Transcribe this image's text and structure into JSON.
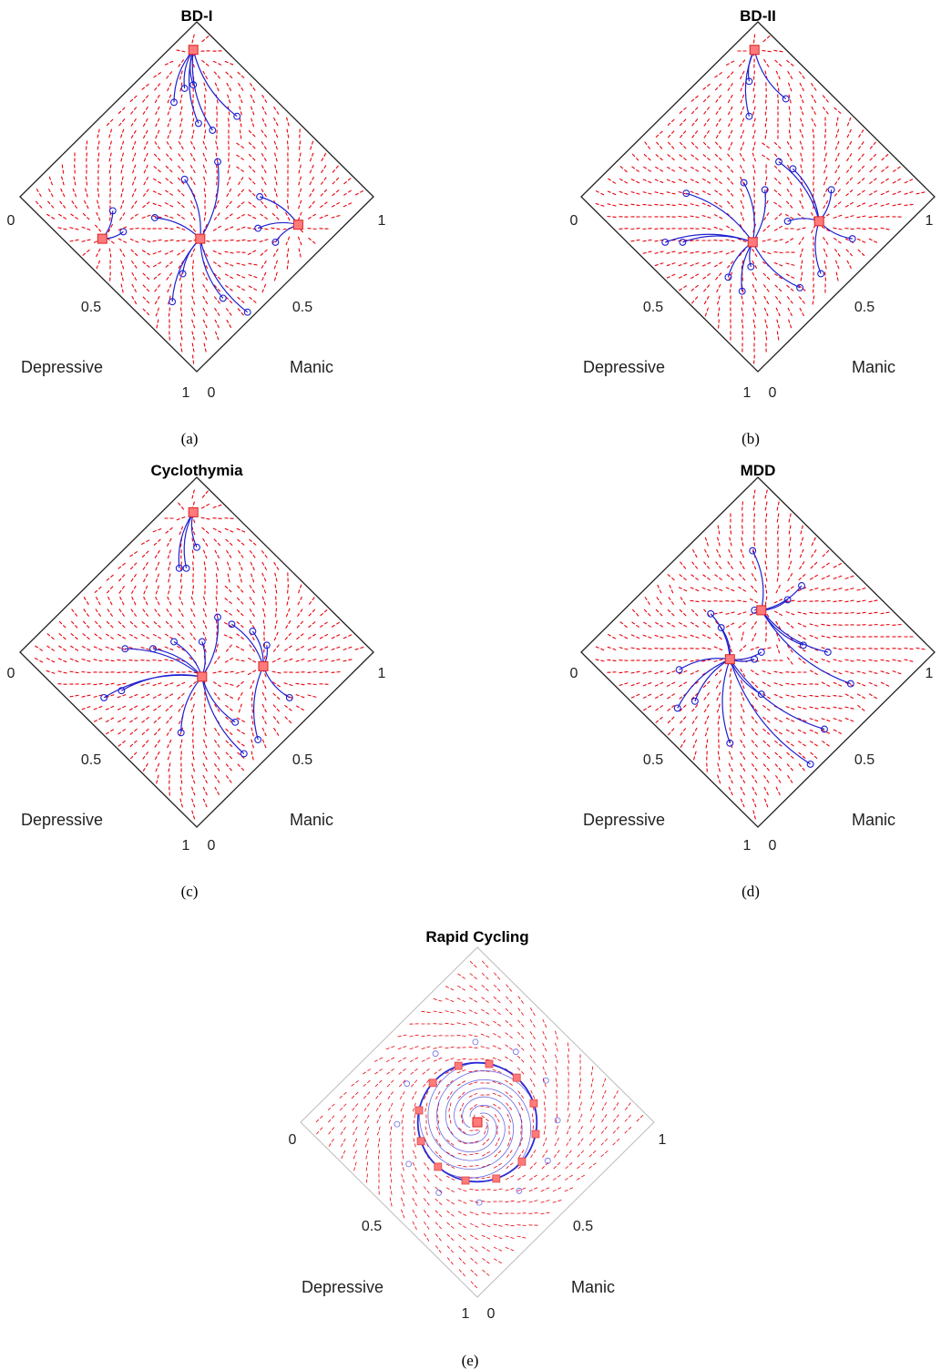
{
  "chart_data": [
    {
      "type": "phase-portrait",
      "title": "BD-I",
      "caption": "(a)",
      "xlabel": "Depressive",
      "ylabel": "Manic",
      "ticks": {
        "left": "0",
        "right": "1",
        "depressive_mid": "0.5",
        "manic_mid": "0.5",
        "bottom_depressive": "1",
        "bottom_manic": "0"
      },
      "attractors": [
        [
          0.0,
          0.58
        ],
        [
          0.05,
          0.03
        ],
        [
          0.3,
          0.32
        ],
        [
          0.58,
          0.04
        ]
      ],
      "initial_points": [
        [
          0.09,
          0.54
        ],
        [
          0.27,
          0.56
        ],
        [
          0.12,
          0.47
        ],
        [
          0.07,
          0.43
        ],
        [
          0.32,
          0.47
        ],
        [
          0.14,
          0.26
        ],
        [
          0.02,
          0.25
        ],
        [
          0.1,
          0.08
        ],
        [
          0.14,
          0.15
        ],
        [
          0.18,
          0.05
        ],
        [
          0.47,
          0.33
        ],
        [
          0.51,
          0.09
        ],
        [
          0.51,
          0.03
        ],
        [
          0.11,
          0.2
        ],
        [
          0.26,
          0.19
        ],
        [
          0.4,
          0.32
        ],
        [
          0.4,
          0.16
        ],
        [
          0.13,
          0.06
        ]
      ],
      "colors": {
        "field": "#e8000b",
        "trajectory": "#1f1fd0",
        "fixed_point": "#ff7a7a"
      }
    },
    {
      "type": "phase-portrait",
      "title": "BD-II",
      "caption": "(b)",
      "xlabel": "Depressive",
      "ylabel": "Manic",
      "ticks": {
        "left": "0",
        "right": "1",
        "depressive_mid": "0.5",
        "manic_mid": "0.5",
        "bottom_depressive": "1",
        "bottom_manic": "0"
      },
      "attractors": [
        [
          0.11,
          0.46
        ],
        [
          0.05,
          0.03
        ],
        [
          0.33,
          0.3
        ]
      ],
      "initial_points": [
        [
          0.04,
          0.58
        ],
        [
          0.18,
          0.54
        ],
        [
          0.26,
          0.5
        ],
        [
          0.2,
          0.37
        ],
        [
          0.03,
          0.45
        ],
        [
          0.11,
          0.31
        ],
        [
          0.45,
          0.28
        ],
        [
          0.14,
          0.26
        ],
        [
          0.11,
          0.06
        ],
        [
          0.16,
          0.11
        ],
        [
          0.27,
          0.19
        ],
        [
          0.22,
          0.26
        ],
        [
          0.03,
          0.19
        ],
        [
          0.45,
          0.04
        ],
        [
          0.53,
          0.1
        ],
        [
          0.58,
          0.05
        ],
        [
          0.43,
          0.34
        ],
        [
          0.37,
          0.33
        ]
      ],
      "colors": {
        "field": "#e8000b",
        "trajectory": "#1f1fd0",
        "fixed_point": "#ff7a7a"
      }
    },
    {
      "type": "phase-portrait",
      "title": "Cyclothymia",
      "caption": "(c)",
      "xlabel": "Depressive",
      "ylabel": "Manic",
      "ticks": {
        "left": "0",
        "right": "1",
        "depressive_mid": "0.5",
        "manic_mid": "0.5",
        "bottom_depressive": "1",
        "bottom_manic": "0"
      },
      "attractors": [
        [
          0.08,
          0.46
        ],
        [
          0.06,
          0.04
        ],
        [
          0.27,
          0.3
        ]
      ],
      "initial_points": [
        [
          0.05,
          0.58
        ],
        [
          0.2,
          0.55
        ],
        [
          0.26,
          0.53
        ],
        [
          0.24,
          0.46
        ],
        [
          0.11,
          0.31
        ],
        [
          0.04,
          0.44
        ],
        [
          0.06,
          0.38
        ],
        [
          0.14,
          0.26
        ],
        [
          0.1,
          0.1
        ],
        [
          0.16,
          0.1
        ],
        [
          0.45,
          0.04
        ],
        [
          0.52,
          0.09
        ],
        [
          0.58,
          0.05
        ],
        [
          0.41,
          0.32
        ],
        [
          0.3,
          0.17
        ],
        [
          0.22,
          0.25
        ],
        [
          0.18,
          0.08
        ],
        [
          0.37,
          0.12
        ]
      ],
      "colors": {
        "field": "#e8000b",
        "trajectory": "#1f1fd0",
        "fixed_point": "#ff7a7a"
      }
    },
    {
      "type": "phase-portrait",
      "title": "MDD",
      "caption": "(d)",
      "xlabel": "Depressive",
      "ylabel": "Manic",
      "ticks": {
        "left": "0",
        "right": "1",
        "depressive_mid": "0.5",
        "manic_mid": "0.5",
        "bottom_depressive": "1",
        "bottom_manic": "0"
      },
      "attractors": [
        [
          0.18,
          0.2
        ],
        [
          0.34,
          0.18
        ]
      ],
      "initial_points": [
        [
          0.03,
          0.56
        ],
        [
          0.17,
          0.55
        ],
        [
          0.26,
          0.56
        ],
        [
          0.05,
          0.45
        ],
        [
          0.11,
          0.37
        ],
        [
          0.3,
          0.32
        ],
        [
          0.09,
          0.26
        ],
        [
          0.03,
          0.28
        ],
        [
          0.2,
          0.18
        ],
        [
          0.27,
          0.25
        ],
        [
          0.12,
          0.09
        ],
        [
          0.5,
          0.14
        ],
        [
          0.46,
          0.3
        ],
        [
          0.5,
          0.05
        ],
        [
          0.33,
          0.06
        ],
        [
          0.32,
          0.11
        ],
        [
          0.24,
          0.26
        ],
        [
          0.56,
          0.1
        ]
      ],
      "colors": {
        "field": "#e8000b",
        "trajectory": "#1f1fd0",
        "fixed_point": "#ff7a7a"
      }
    },
    {
      "type": "phase-portrait",
      "title": "Rapid Cycling",
      "caption": "(e)",
      "xlabel": "Depressive",
      "ylabel": "Manic",
      "ticks": {
        "left": "0",
        "right": "1",
        "depressive_mid": "0.5",
        "manic_mid": "0.5",
        "bottom_depressive": "1",
        "bottom_manic": "0"
      },
      "limit_cycle": {
        "center": [
          0.25,
          0.25
        ],
        "radius": 0.17
      },
      "attractors": [
        [
          0.25,
          0.25
        ]
      ],
      "colors": {
        "field": "#e8000b",
        "trajectory": "#2a2ad8",
        "fixed_point": "#ff7a7a"
      }
    }
  ]
}
